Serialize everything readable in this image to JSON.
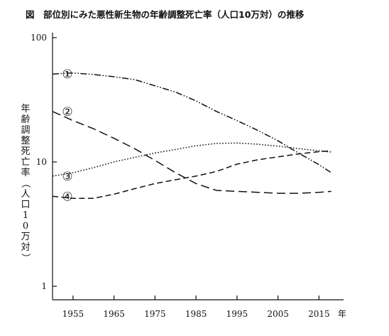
{
  "chart_data": {
    "type": "line",
    "title": "図　部位別にみた悪性新生物の年齢調整死亡率（人口10万対）の推移",
    "ylabel": "年齢調整死亡率（人口10万対）",
    "xlabel": "",
    "y_scale": "log",
    "ylim": [
      1,
      100
    ],
    "xlim": [
      1950,
      2021
    ],
    "x_ticks": [
      "1955",
      "1965",
      "1975",
      "1985",
      "1995",
      "2005",
      "2015"
    ],
    "x_unit": "年",
    "y_ticks": [
      "100",
      "10",
      "1"
    ],
    "grid": false,
    "series": [
      {
        "name": "①",
        "line_style": "dash-dot-dot",
        "x": [
          1950,
          1955,
          1960,
          1965,
          1970,
          1975,
          1980,
          1985,
          1990,
          1995,
          2000,
          2005,
          2010,
          2015,
          2018
        ],
        "values": [
          51,
          52,
          50.5,
          48.5,
          46,
          41,
          36.5,
          31,
          25.5,
          21.5,
          18,
          14.8,
          11.8,
          9.5,
          8.2
        ]
      },
      {
        "name": "②",
        "line_style": "long-dash",
        "x": [
          1950,
          1955,
          1960,
          1965,
          1970,
          1975,
          1980,
          1985,
          1990,
          1995,
          2000,
          2005,
          2010,
          2015,
          2018
        ],
        "values": [
          25.5,
          21.5,
          18.5,
          15.5,
          12.8,
          10.3,
          8.2,
          6.7,
          5.9,
          5.8,
          5.7,
          5.6,
          5.6,
          5.7,
          5.8
        ]
      },
      {
        "name": "③",
        "line_style": "dotted",
        "x": [
          1950,
          1955,
          1960,
          1965,
          1970,
          1975,
          1980,
          1985,
          1990,
          1995,
          2000,
          2005,
          2010,
          2015,
          2018
        ],
        "values": [
          7.7,
          8.2,
          9.0,
          10.0,
          10.9,
          11.8,
          12.6,
          13.5,
          14.1,
          14.2,
          13.9,
          13.4,
          12.8,
          12.3,
          12.0
        ]
      },
      {
        "name": "④",
        "line_style": "dashed",
        "x": [
          1950,
          1955,
          1960,
          1965,
          1970,
          1975,
          1980,
          1985,
          1990,
          1995,
          2000,
          2005,
          2010,
          2015,
          2018
        ],
        "values": [
          5.3,
          5.1,
          5.1,
          5.5,
          6.1,
          6.7,
          7.2,
          7.7,
          8.4,
          9.6,
          10.4,
          11.0,
          11.6,
          12.1,
          12.3
        ]
      }
    ]
  }
}
